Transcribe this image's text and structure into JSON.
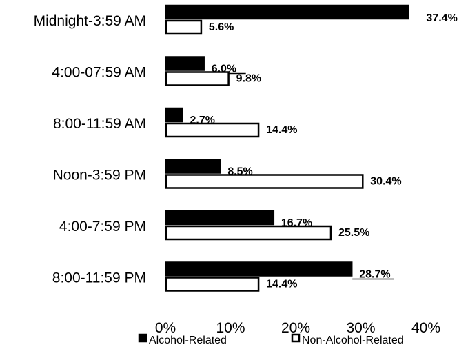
{
  "chart_data": {
    "type": "bar",
    "orientation": "horizontal",
    "categories": [
      "Midnight-3:59 AM",
      "4:00-07:59 AM",
      "8:00-11:59 AM",
      "Noon-3:59 PM",
      "4:00-7:59 PM",
      "8:00-11:59 PM"
    ],
    "series": [
      {
        "name": "Alcohol-Related",
        "values": [
          37.4,
          6.0,
          2.7,
          8.5,
          16.7,
          28.7
        ],
        "labels": [
          "37.4%",
          "6.0%",
          "2.7%",
          "8.5%",
          "16.7%",
          "28.7%"
        ],
        "color": "#000000"
      },
      {
        "name": "Non-Alcohol-Related",
        "values": [
          5.6,
          9.8,
          14.4,
          30.4,
          25.5,
          14.4
        ],
        "labels": [
          "5.6%",
          "9.8%",
          "14.4%",
          "30.4%",
          "25.5%",
          "14.4%"
        ],
        "color": "#ffffff"
      }
    ],
    "xlim": [
      0,
      40
    ],
    "xticks": [
      "0%",
      "10%",
      "20%",
      "30%",
      "40%"
    ],
    "legend_position": "bottom",
    "grid": false
  }
}
